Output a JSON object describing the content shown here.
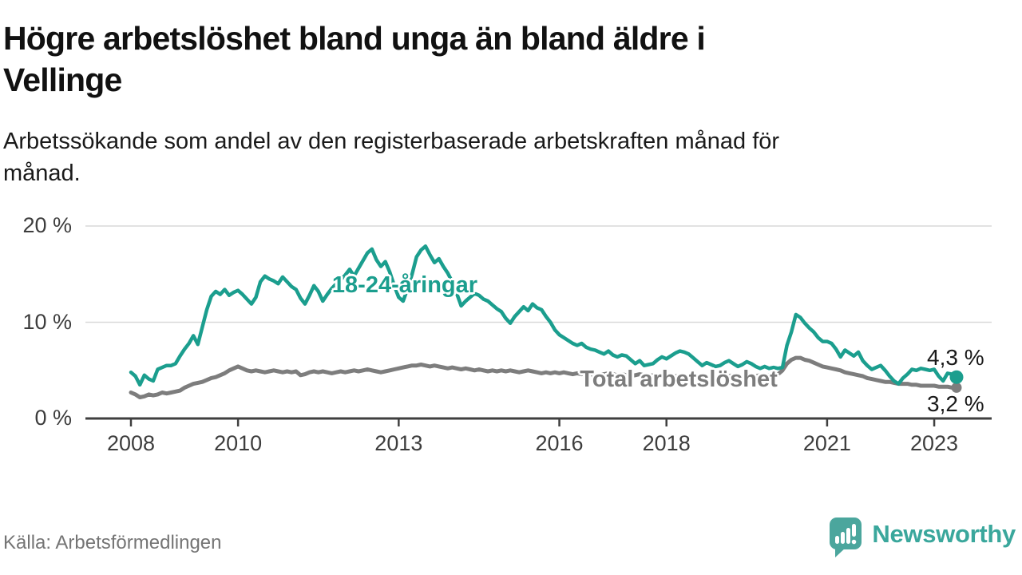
{
  "header": {
    "title_line1": "Högre arbetslöshet bland unga än bland äldre i",
    "title_line2": "Vellinge",
    "subtitle_line1": "Arbetssökande som andel av den registerbaserade arbetskraften månad för",
    "subtitle_line2": "månad."
  },
  "footer": {
    "source": "Källa: Arbetsförmedlingen",
    "brand_name": "Newsworthy",
    "brand_icon": "newsworthy-speech-bubble-bar-chart-icon"
  },
  "colors": {
    "young_line": "#1b9e8e",
    "total_line": "#7d7d7d",
    "axis": "#3f3f3f",
    "gridline": "#d9d9d9",
    "tick_text": "#3d3d3d",
    "brand_teal": "#3aa79c",
    "brand_icon_teal": "#4ba69d"
  },
  "chart_data": {
    "type": "line",
    "title": "Högre arbetslöshet bland unga än bland äldre i Vellinge",
    "subtitle": "Arbetssökande som andel av den registerbaserade arbetskraften månad för månad.",
    "unit": "%",
    "frequency": "monthly",
    "x_start": "2008-01",
    "x_end": "2023-06",
    "x_tick_years": [
      2008,
      2010,
      2013,
      2016,
      2018,
      2021,
      2023
    ],
    "x_tick_labels": [
      "2008",
      "2010",
      "2013",
      "2016",
      "2018",
      "2021",
      "2023"
    ],
    "y_ticks": [
      {
        "value": 0,
        "label": "0 %"
      },
      {
        "value": 10,
        "label": "10 %"
      },
      {
        "value": 20,
        "label": "20 %"
      }
    ],
    "ylim": [
      0,
      21
    ],
    "grid": "horizontal",
    "legend_position": "inline-labels",
    "series": [
      {
        "name": "18-24-åringar",
        "color": "#1b9e8e",
        "end_label": "4,3 %",
        "end_value": 4.3,
        "values": [
          4.8,
          4.4,
          3.5,
          4.5,
          4.1,
          3.9,
          5.1,
          5.3,
          5.5,
          5.5,
          5.7,
          6.5,
          7.2,
          7.8,
          8.6,
          7.7,
          9.5,
          11.3,
          12.7,
          13.2,
          12.9,
          13.4,
          12.8,
          13.1,
          13.3,
          12.9,
          12.4,
          11.9,
          12.6,
          14.2,
          14.8,
          14.5,
          14.3,
          14.0,
          14.7,
          14.2,
          13.7,
          13.4,
          12.5,
          11.9,
          12.8,
          13.8,
          13.2,
          12.2,
          12.9,
          13.5,
          14.0,
          14.4,
          14.9,
          15.5,
          14.8,
          15.6,
          16.4,
          17.2,
          17.6,
          16.5,
          15.8,
          16.3,
          15.2,
          13.8,
          12.6,
          12.2,
          13.5,
          15.0,
          16.8,
          17.5,
          17.9,
          17.0,
          16.2,
          16.6,
          15.8,
          15.1,
          14.2,
          13.0,
          11.7,
          12.2,
          12.6,
          13.0,
          12.8,
          12.4,
          12.2,
          11.8,
          11.4,
          11.1,
          10.4,
          9.9,
          10.6,
          11.1,
          11.6,
          11.2,
          11.9,
          11.5,
          11.3,
          10.6,
          10.0,
          9.2,
          8.7,
          8.4,
          8.1,
          7.8,
          7.6,
          7.8,
          7.4,
          7.2,
          7.1,
          6.9,
          6.7,
          7.0,
          6.6,
          6.4,
          6.6,
          6.5,
          6.1,
          5.7,
          6.0,
          5.5,
          5.6,
          5.7,
          6.1,
          6.4,
          6.2,
          6.5,
          6.8,
          7.0,
          6.9,
          6.7,
          6.3,
          5.9,
          5.5,
          5.8,
          5.6,
          5.4,
          5.5,
          5.8,
          6.0,
          5.7,
          5.4,
          5.6,
          5.9,
          5.7,
          5.4,
          5.2,
          5.4,
          5.2,
          5.3,
          5.2,
          5.3,
          7.6,
          9.0,
          10.8,
          10.5,
          9.9,
          9.4,
          9.0,
          8.4,
          8.0,
          8.0,
          7.8,
          7.2,
          6.4,
          7.1,
          6.8,
          6.5,
          6.9,
          6.0,
          5.5,
          5.1,
          5.3,
          5.5,
          5.0,
          4.4,
          3.9,
          3.6,
          4.2,
          4.6,
          5.1,
          5.0,
          5.2,
          5.1,
          5.0,
          5.1,
          4.4,
          3.9,
          4.7,
          4.6,
          4.3
        ]
      },
      {
        "name": "Total arbetslöshet",
        "color": "#7d7d7d",
        "end_label": "3,2 %",
        "end_value": 3.2,
        "values": [
          2.7,
          2.5,
          2.2,
          2.3,
          2.5,
          2.4,
          2.5,
          2.7,
          2.6,
          2.7,
          2.8,
          2.9,
          3.2,
          3.4,
          3.6,
          3.7,
          3.8,
          4.0,
          4.2,
          4.3,
          4.5,
          4.7,
          5.0,
          5.2,
          5.4,
          5.2,
          5.0,
          4.9,
          5.0,
          4.9,
          4.8,
          4.9,
          5.0,
          4.9,
          4.8,
          4.9,
          4.8,
          4.9,
          4.5,
          4.6,
          4.8,
          4.9,
          4.8,
          4.9,
          4.8,
          4.7,
          4.8,
          4.9,
          4.8,
          4.9,
          5.0,
          4.9,
          5.0,
          5.1,
          5.0,
          4.9,
          4.8,
          4.9,
          5.0,
          5.1,
          5.2,
          5.3,
          5.4,
          5.5,
          5.5,
          5.6,
          5.5,
          5.4,
          5.5,
          5.4,
          5.3,
          5.2,
          5.3,
          5.2,
          5.1,
          5.2,
          5.1,
          5.0,
          5.1,
          5.0,
          4.9,
          5.0,
          4.9,
          5.0,
          4.9,
          5.0,
          4.9,
          4.8,
          4.9,
          5.0,
          4.9,
          4.8,
          4.7,
          4.8,
          4.7,
          4.8,
          4.7,
          4.8,
          4.7,
          4.6,
          4.7,
          4.6,
          4.7,
          4.6,
          4.5,
          4.6,
          4.6,
          4.7,
          4.6,
          4.5,
          4.6,
          4.5,
          4.4,
          4.5,
          4.6,
          4.5,
          4.4,
          4.5,
          4.4,
          4.5,
          4.4,
          4.5,
          4.4,
          4.3,
          4.4,
          4.3,
          4.4,
          4.3,
          4.2,
          4.3,
          4.4,
          4.3,
          4.4,
          4.3,
          4.4,
          4.5,
          4.4,
          4.3,
          4.4,
          4.5,
          4.4,
          4.5,
          4.4,
          4.5,
          4.5,
          4.6,
          5.0,
          5.7,
          6.1,
          6.3,
          6.3,
          6.1,
          6.0,
          5.8,
          5.6,
          5.4,
          5.3,
          5.2,
          5.1,
          5.0,
          4.8,
          4.7,
          4.6,
          4.5,
          4.4,
          4.2,
          4.1,
          4.0,
          3.9,
          3.8,
          3.8,
          3.7,
          3.6,
          3.6,
          3.6,
          3.5,
          3.5,
          3.4,
          3.4,
          3.4,
          3.4,
          3.3,
          3.3,
          3.3,
          3.2,
          3.2
        ]
      }
    ]
  }
}
